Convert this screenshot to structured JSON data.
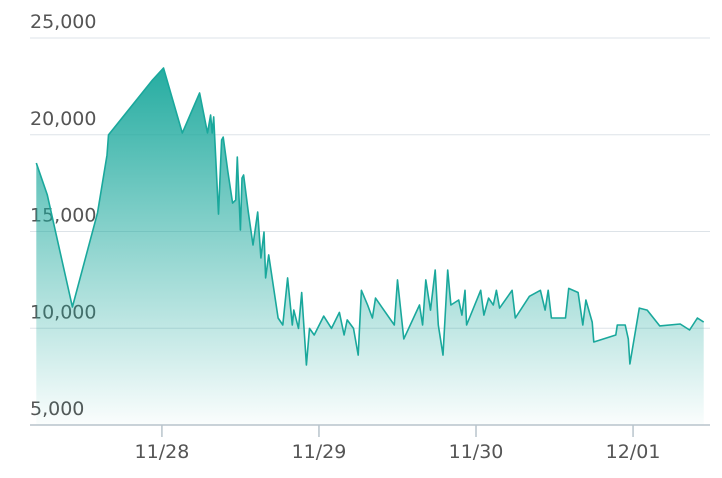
{
  "chart_data": {
    "type": "area",
    "x": [
      27.2,
      27.27,
      27.43,
      27.59,
      27.65,
      27.66,
      27.94,
      28.01,
      28.13,
      28.24,
      28.29,
      28.31,
      28.32,
      28.33,
      28.36,
      28.38,
      28.39,
      28.42,
      28.45,
      28.47,
      28.48,
      28.5,
      28.51,
      28.52,
      28.55,
      28.58,
      28.61,
      28.63,
      28.65,
      28.66,
      28.68,
      28.74,
      28.77,
      28.8,
      28.83,
      28.84,
      28.87,
      28.89,
      28.92,
      28.94,
      28.97,
      29.03,
      29.08,
      29.13,
      29.16,
      29.18,
      29.22,
      29.25,
      29.27,
      29.31,
      29.34,
      29.36,
      29.48,
      29.5,
      29.54,
      29.64,
      29.66,
      29.68,
      29.71,
      29.74,
      29.76,
      29.79,
      29.82,
      29.84,
      29.89,
      29.91,
      29.93,
      29.94,
      30.03,
      30.05,
      30.08,
      30.11,
      30.13,
      30.15,
      30.23,
      30.25,
      30.34,
      30.41,
      30.44,
      30.46,
      30.48,
      30.57,
      30.59,
      30.65,
      30.68,
      30.7,
      30.74,
      30.75,
      30.89,
      30.9,
      30.95,
      30.97,
      30.98,
      31.04,
      31.09,
      31.17,
      31.3,
      31.36,
      31.41,
      31.45
    ],
    "values": [
      18540,
      16890,
      11100,
      15960,
      18950,
      19990,
      22830,
      23450,
      20090,
      22160,
      20090,
      21020,
      20090,
      20920,
      15900,
      19730,
      19880,
      18080,
      16470,
      16630,
      18850,
      15080,
      17760,
      17920,
      16010,
      14300,
      16010,
      13630,
      14970,
      12600,
      13790,
      10530,
      10170,
      12600,
      10170,
      10940,
      9990,
      11850,
      8100,
      9990,
      9650,
      10630,
      9990,
      10820,
      9650,
      10430,
      9990,
      8610,
      11960,
      11200,
      10530,
      11560,
      10170,
      12500,
      9450,
      11200,
      10170,
      12500,
      10940,
      13010,
      10170,
      8610,
      13010,
      11200,
      11460,
      10680,
      11960,
      10170,
      11960,
      10680,
      11560,
      11200,
      11960,
      11040,
      11960,
      10530,
      11650,
      11960,
      10940,
      11960,
      10530,
      10530,
      12060,
      11850,
      10170,
      11460,
      10320,
      9290,
      9650,
      10170,
      10170,
      9450,
      8160,
      11040,
      10940,
      10120,
      10220,
      9910,
      10530,
      10320
    ],
    "color": "#1aa89c",
    "xlim": [
      27.16,
      31.49
    ],
    "xticks": [
      {
        "value": 28,
        "label": "11/28"
      },
      {
        "value": 29,
        "label": "11/29"
      },
      {
        "value": 30,
        "label": "11/30"
      },
      {
        "value": 31,
        "label": "12/01"
      }
    ],
    "ylim": [
      5000,
      25000
    ],
    "yticks": [
      {
        "value": 5000,
        "label": "5,000"
      },
      {
        "value": 10000,
        "label": "10,000"
      },
      {
        "value": 15000,
        "label": "15,000"
      },
      {
        "value": 20000,
        "label": "20,000"
      },
      {
        "value": 25000,
        "label": "25,000"
      }
    ],
    "grid": true
  }
}
